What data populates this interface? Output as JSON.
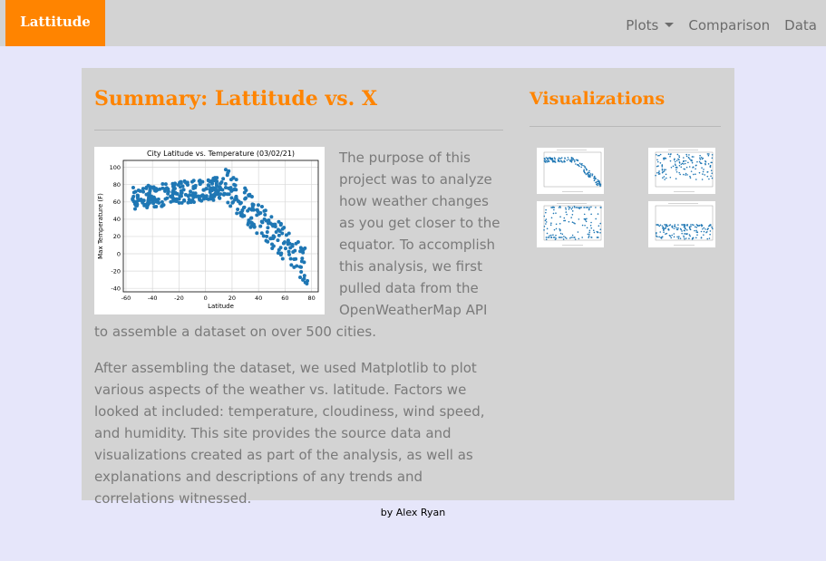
{
  "navbar": {
    "brand": "Lattitude",
    "items": [
      {
        "label": "Plots",
        "dropdown": true
      },
      {
        "label": "Comparison",
        "dropdown": false
      },
      {
        "label": "Data",
        "dropdown": false
      }
    ]
  },
  "summary": {
    "title": "Summary: Lattitude vs. X",
    "paragraphs": [
      "The purpose of this project was to analyze how weather changes as you get closer to the equator. To accomplish this analysis, we first pulled data from the OpenWeatherMap API to assemble a dataset on over 500 cities.",
      "After assembling the dataset, we used Matplotlib to plot various aspects of the weather vs. latitude. Factors we looked at included: temperature, cloudiness, wind speed, and humidity. This site provides the source data and visualizations created as part of the analysis, as well as explanations and descriptions of any trends and correlations witnessed."
    ]
  },
  "visualizations": {
    "title": "Visualizations",
    "thumbnails": [
      "temperature-plot",
      "humidity-plot",
      "cloudiness-plot",
      "wind-speed-plot"
    ]
  },
  "main_plot": {
    "title": "City Latitude vs. Temperature (03/02/21)",
    "xlabel": "Latitude",
    "ylabel": "Max Temperature (F)",
    "xticks": [
      -60,
      -40,
      -20,
      0,
      20,
      40,
      60,
      80
    ],
    "yticks": [
      -40,
      -20,
      0,
      20,
      40,
      60,
      80,
      100
    ],
    "xlim": [
      -62,
      85
    ],
    "ylim": [
      -44,
      108
    ]
  },
  "colors": {
    "brand": "#ff8400",
    "background": "#e6e6fa",
    "panel": "#d3d3d3",
    "marker": "#1f77b4"
  },
  "footer": {
    "text": "by Alex Ryan"
  }
}
